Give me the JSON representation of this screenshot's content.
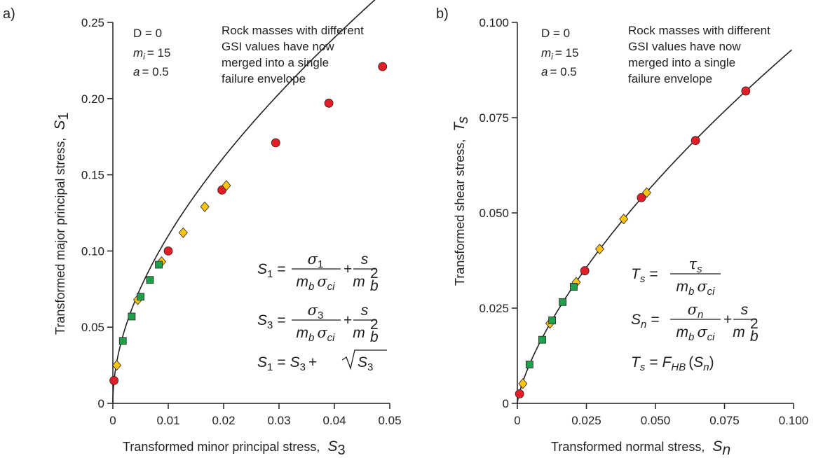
{
  "colors": {
    "red": "#e31e26",
    "yellow": "#fcc410",
    "green": "#1fa04a",
    "curve": "#231f20",
    "axis": "#231f20"
  },
  "chart_data": [
    {
      "panel": "a)",
      "type": "scatter",
      "xlabel_text": "Transformed minor principal stress,",
      "xlabel_symbol": "S3",
      "ylabel_text": "Transformed major principal stress,",
      "ylabel_symbol": "S1",
      "xlim": [
        0,
        0.05
      ],
      "ylim": [
        0,
        0.25
      ],
      "xticks": [
        0,
        0.01,
        0.02,
        0.03,
        0.04,
        0.05
      ],
      "xtick_labels": [
        "0",
        "0.01",
        "0.02",
        "0.03",
        "0.04",
        "0.05"
      ],
      "yticks": [
        0,
        0.05,
        0.1,
        0.15,
        0.2,
        0.25
      ],
      "ytick_labels": [
        "0",
        "0.05",
        "0.10",
        "0.15",
        "0.20",
        "0.25"
      ],
      "params": {
        "D": "D = 0",
        "mi_value": "= 15",
        "a": "= 0.5"
      },
      "annotation": [
        "Rock masses with different",
        "GSI values have now",
        "merged into a single",
        "failure envelope"
      ],
      "envelope": "S1 = S3 + sqrt(S3)",
      "series": [
        {
          "marker": "circle",
          "color": "red",
          "points": [
            [
              0.0002,
              0.015
            ],
            [
              0.01,
              0.1
            ],
            [
              0.0197,
              0.14
            ],
            [
              0.0294,
              0.171
            ],
            [
              0.039,
              0.197
            ],
            [
              0.0487,
              0.221
            ]
          ]
        },
        {
          "marker": "diamond",
          "color": "yellow",
          "points": [
            [
              0.0007,
              0.025
            ],
            [
              0.0045,
              0.068
            ],
            [
              0.0088,
              0.093
            ],
            [
              0.0127,
              0.112
            ],
            [
              0.0166,
              0.129
            ],
            [
              0.0205,
              0.143
            ]
          ]
        },
        {
          "marker": "square",
          "color": "green",
          "points": [
            [
              0.0018,
              0.041
            ],
            [
              0.0034,
              0.057
            ],
            [
              0.005,
              0.07
            ],
            [
              0.0067,
              0.081
            ],
            [
              0.0083,
              0.091
            ]
          ]
        }
      ]
    },
    {
      "panel": "b)",
      "type": "scatter",
      "xlabel_text": "Transformed normal stress,",
      "xlabel_symbol": "Sn",
      "ylabel_text": "Transformed shear stress,",
      "ylabel_symbol": "Ts",
      "xlim": [
        0,
        0.1
      ],
      "ylim": [
        0,
        0.1
      ],
      "xticks": [
        0,
        0.025,
        0.05,
        0.075,
        0.1
      ],
      "xtick_labels": [
        "0",
        "0.025",
        "0.050",
        "0.075",
        "0.100"
      ],
      "yticks": [
        0,
        0.025,
        0.05,
        0.075,
        0.1
      ],
      "ytick_labels": [
        "0",
        "0.025",
        "0.050",
        "0.075",
        "0.100"
      ],
      "params": {
        "D": "D = 0",
        "mi_value": "= 15",
        "a": "= 0.5"
      },
      "annotation": [
        "Rock masses with different",
        "GSI values have now",
        "merged into a single",
        "failure envelope"
      ],
      "envelope": "Ts = F_HB(Sn)",
      "series": [
        {
          "marker": "circle",
          "color": "red",
          "points": [
            [
              0.0008,
              0.0025
            ],
            [
              0.0244,
              0.0348
            ],
            [
              0.0449,
              0.054
            ],
            [
              0.0645,
              0.069
            ],
            [
              0.0827,
              0.082
            ]
          ]
        },
        {
          "marker": "diamond",
          "color": "yellow",
          "points": [
            [
              0.002,
              0.0052
            ],
            [
              0.0118,
              0.021
            ],
            [
              0.0213,
              0.0318
            ],
            [
              0.0298,
              0.0405
            ],
            [
              0.0385,
              0.0484
            ],
            [
              0.0468,
              0.0553
            ]
          ]
        },
        {
          "marker": "square",
          "color": "green",
          "points": [
            [
              0.0044,
              0.0102
            ],
            [
              0.009,
              0.0167
            ],
            [
              0.0126,
              0.0218
            ],
            [
              0.0164,
              0.0266
            ],
            [
              0.0204,
              0.0306
            ]
          ]
        }
      ]
    }
  ]
}
